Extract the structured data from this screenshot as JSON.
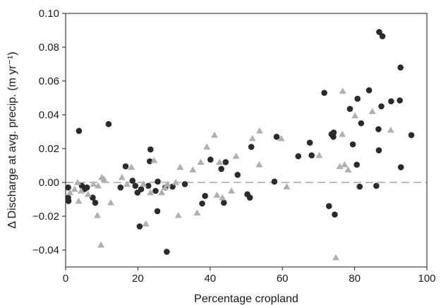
{
  "chart_data": {
    "type": "scatter",
    "title": "",
    "xlabel": "Percentage cropland",
    "ylabel": "Δ Discharge at avg. precip. (m yr⁻¹)",
    "xlim": [
      0,
      100
    ],
    "ylim": [
      -0.05,
      0.1
    ],
    "xticks": [
      0,
      20,
      40,
      60,
      80,
      100
    ],
    "xtick_labels": [
      "0",
      "20",
      "40",
      "60",
      "80",
      "100"
    ],
    "yticks": [
      -0.04,
      -0.02,
      0.0,
      0.02,
      0.04,
      0.06,
      0.08,
      0.1
    ],
    "ytick_labels": [
      "−0.04",
      "−0.02",
      "0.00",
      "0.02",
      "0.04",
      "0.06",
      "0.08",
      "0.10"
    ],
    "reference_line": {
      "y": 0,
      "style": "dashed",
      "color": "#a6a6a6"
    },
    "grid": false,
    "legend": "none",
    "series": [
      {
        "marker": "circle",
        "color": "#2b2b2b",
        "points": [
          [
            0.7,
            -0.003
          ],
          [
            0.7,
            -0.009
          ],
          [
            0.8,
            -0.011
          ],
          [
            3.7,
            0.0305
          ],
          [
            4.5,
            -0.002
          ],
          [
            5.2,
            -0.004
          ],
          [
            5.9,
            -0.003
          ],
          [
            7.5,
            -0.009
          ],
          [
            8.2,
            -0.012
          ],
          [
            11.9,
            0.0345
          ],
          [
            15.2,
            -0.003
          ],
          [
            16.6,
            0.0095
          ],
          [
            18.5,
            0.001
          ],
          [
            19.3,
            -0.002
          ],
          [
            19.9,
            -0.006
          ],
          [
            20.5,
            -0.026
          ],
          [
            20.9,
            -0.004
          ],
          [
            22.9,
            -0.002
          ],
          [
            23.3,
            0.0125
          ],
          [
            23.5,
            0.0195
          ],
          [
            24.9,
            -0.005
          ],
          [
            25.4,
            -0.017
          ],
          [
            25.5,
            0.0005
          ],
          [
            27.6,
            -0.003
          ],
          [
            28.0,
            -0.041
          ],
          [
            29.6,
            -0.0025
          ],
          [
            33.0,
            -0.001
          ],
          [
            37.8,
            -0.0125
          ],
          [
            38.6,
            -0.008
          ],
          [
            40.1,
            0.0135
          ],
          [
            43.1,
            0.008
          ],
          [
            43.8,
            -0.012
          ],
          [
            44.3,
            0.012
          ],
          [
            47.6,
            0.0045
          ],
          [
            50.3,
            -0.007
          ],
          [
            51.0,
            -0.009
          ],
          [
            51.4,
            0.021
          ],
          [
            57.8,
            0.0005
          ],
          [
            58.4,
            0.027
          ],
          [
            64.4,
            0.0155
          ],
          [
            67.6,
            0.0235
          ],
          [
            68.1,
            0.016
          ],
          [
            71.6,
            0.053
          ],
          [
            72.9,
            -0.014
          ],
          [
            73.6,
            0.0285
          ],
          [
            74.1,
            0.027
          ],
          [
            74.2,
            0.0295
          ],
          [
            74.5,
            -0.019
          ],
          [
            78.7,
            0.0435
          ],
          [
            79.5,
            0.0225
          ],
          [
            80.6,
            0.0105
          ],
          [
            80.8,
            0.0495
          ],
          [
            81.4,
            -0.0025
          ],
          [
            81.8,
            0.035
          ],
          [
            84.0,
            0.0545
          ],
          [
            86.0,
            -0.002
          ],
          [
            86.6,
            0.0315
          ],
          [
            86.7,
            0.019
          ],
          [
            86.8,
            0.089
          ],
          [
            87.4,
            0.045
          ],
          [
            87.7,
            0.0865
          ],
          [
            90.1,
            0.048
          ],
          [
            92.5,
            0.0485
          ],
          [
            92.7,
            0.068
          ],
          [
            92.8,
            0.009
          ],
          [
            95.7,
            0.028
          ]
        ]
      },
      {
        "marker": "triangle",
        "color": "#b0b0b0",
        "points": [
          [
            1.2,
            -0.006
          ],
          [
            2.5,
            -0.004
          ],
          [
            3.3,
            0.0
          ],
          [
            3.6,
            -0.011
          ],
          [
            4.3,
            -0.005
          ],
          [
            6.2,
            -0.007
          ],
          [
            7.7,
            -0.001
          ],
          [
            8.8,
            -0.0195
          ],
          [
            9.0,
            -0.002
          ],
          [
            9.8,
            -0.037
          ],
          [
            10.0,
            0.003
          ],
          [
            10.6,
            0.002
          ],
          [
            12.5,
            -0.012
          ],
          [
            15.6,
            0.003
          ],
          [
            17.0,
            -0.001
          ],
          [
            18.2,
            0.009
          ],
          [
            21.5,
            -0.001
          ],
          [
            22.2,
            -0.0245
          ],
          [
            23.5,
            -0.006
          ],
          [
            24.5,
            0.013
          ],
          [
            26.6,
            -0.006
          ],
          [
            27.5,
            -0.003
          ],
          [
            28.2,
            -0.001
          ],
          [
            30.5,
            0.0
          ],
          [
            31.2,
            -0.0195
          ],
          [
            31.7,
            0.009
          ],
          [
            35.2,
            0.0075
          ],
          [
            36.4,
            -0.018
          ],
          [
            37.4,
            0.012
          ],
          [
            39.1,
            0.021
          ],
          [
            41.2,
            0.028
          ],
          [
            41.9,
            -0.0075
          ],
          [
            42.6,
            0.012
          ],
          [
            43.4,
            -0.009
          ],
          [
            45.9,
            -0.005
          ],
          [
            47.2,
            0.0155
          ],
          [
            51.7,
            0.026
          ],
          [
            53.6,
            0.0105
          ],
          [
            53.7,
            0.0305
          ],
          [
            59.7,
            0.026
          ],
          [
            61.2,
            -0.0025
          ],
          [
            70.2,
            0.016
          ],
          [
            74.8,
            -0.0445
          ],
          [
            75.9,
            0.0095
          ],
          [
            76.6,
            0.0285
          ],
          [
            76.7,
            0.054
          ],
          [
            77.2,
            0.0105
          ],
          [
            78.2,
            0.0075
          ],
          [
            80.1,
            0.0395
          ],
          [
            84.9,
            0.042
          ],
          [
            90.0,
            0.031
          ]
        ]
      }
    ]
  }
}
